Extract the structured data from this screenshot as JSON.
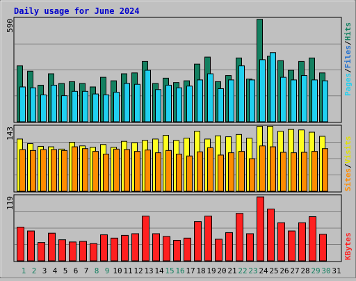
{
  "title": "Daily usage for June 2024",
  "colors": {
    "background": "#c0c0c0",
    "title": "#0000cc",
    "hits": "#138060",
    "files": "#20d0f0",
    "pages": "#20d0f0",
    "visits": "#ffff20",
    "sites": "#ff8c00",
    "kbytes": "#ff2020",
    "weekend_day": "#138060",
    "weekday": "#000000"
  },
  "axis_labels": {
    "top_max": "590",
    "middle_max": "143",
    "bottom_max": "119"
  },
  "legend": {
    "pages": "Pages",
    "files": "Files",
    "hits": "Hits",
    "sites": "Sites",
    "visits": "Visits",
    "kbytes": "KBytes",
    "separator": "/"
  },
  "chart_data": {
    "type": "bar",
    "title": "Daily usage for June 2024",
    "categories": [
      "1",
      "2",
      "3",
      "4",
      "5",
      "6",
      "7",
      "8",
      "9",
      "10",
      "11",
      "12",
      "13",
      "14",
      "15",
      "16",
      "17",
      "18",
      "19",
      "20",
      "21",
      "22",
      "23",
      "24",
      "25",
      "26",
      "27",
      "28",
      "29",
      "30",
      "31"
    ],
    "weekend_days": [
      "1",
      "2",
      "8",
      "9",
      "15",
      "16",
      "22",
      "23",
      "29",
      "30"
    ],
    "panels": [
      {
        "name": "hits_files_pages",
        "ymax": 590,
        "series": [
          {
            "name": "Hits",
            "values": [
              320,
              290,
              210,
              275,
              220,
              230,
              220,
              200,
              255,
              235,
              275,
              280,
              345,
              220,
              250,
              225,
              235,
              330,
              370,
              230,
              265,
              365,
              245,
              585,
              375,
              350,
              295,
              345,
              365,
              280,
              0
            ]
          },
          {
            "name": "Files",
            "values": [
              200,
              195,
              155,
              210,
              150,
              175,
              175,
              160,
              155,
              170,
              220,
              215,
              295,
              185,
              210,
              195,
              205,
              240,
              275,
              190,
              240,
              320,
              240,
              355,
              395,
              255,
              240,
              265,
              240,
              235,
              0
            ]
          },
          {
            "name": "Pages",
            "values": [
              0,
              0,
              0,
              0,
              0,
              0,
              0,
              0,
              0,
              0,
              0,
              0,
              0,
              0,
              0,
              0,
              0,
              0,
              0,
              0,
              0,
              0,
              0,
              0,
              0,
              0,
              0,
              0,
              0,
              0,
              0
            ]
          }
        ]
      },
      {
        "name": "visits_sites",
        "ymax": 143,
        "series": [
          {
            "name": "Visits",
            "values": [
              115,
              105,
              99,
              98,
              93,
              108,
              100,
              97,
              103,
              97,
              110,
              107,
              112,
              115,
              123,
              112,
              117,
              132,
              115,
              122,
              120,
              125,
              117,
              143,
              143,
              132,
              136,
              135,
              130,
              121,
              0
            ]
          },
          {
            "name": "Sites",
            "values": [
              92,
              90,
              92,
              92,
              90,
              98,
              94,
              88,
              82,
              93,
              92,
              88,
              91,
              85,
              90,
              82,
              78,
              87,
              96,
              80,
              85,
              88,
              72,
              100,
              98,
              86,
              85,
              86,
              88,
              94,
              0
            ]
          }
        ]
      },
      {
        "name": "kbytes",
        "ymax": 119,
        "series": [
          {
            "name": "KBytes",
            "values": [
              62,
              55,
              34,
              51,
              39,
              35,
              36,
              32,
              48,
              42,
              47,
              50,
              82,
              50,
              45,
              38,
              42,
              72,
              82,
              40,
              52,
              87,
              50,
              117,
              95,
              70,
              55,
              70,
              81,
              49,
              0
            ]
          }
        ]
      }
    ]
  }
}
